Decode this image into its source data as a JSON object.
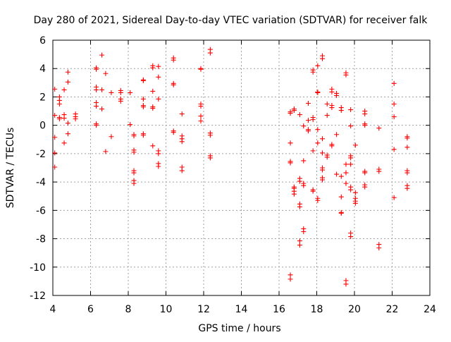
{
  "chart_data": {
    "type": "scatter",
    "title": "Day 280 of 2021, Sidereal Day-to-day VTEC variation (SDTVAR) for receiver falk",
    "xlabel": "GPS time / hours",
    "ylabel": "SDTVAR / TECUs",
    "xlim": [
      4,
      24
    ],
    "ylim": [
      -12,
      6
    ],
    "xticks": [
      4,
      6,
      8,
      10,
      12,
      14,
      16,
      18,
      20,
      22,
      24
    ],
    "yticks": [
      -12,
      -10,
      -8,
      -6,
      -4,
      -2,
      0,
      2,
      4,
      6
    ],
    "xtick_labels": [
      "4",
      "6",
      "8",
      "10",
      "12",
      "14",
      "16",
      "18",
      "20",
      "22",
      "24"
    ],
    "ytick_labels": [
      "-12",
      "-10",
      "-8",
      "-6",
      "-4",
      "-2",
      "0",
      "2",
      "4",
      "6"
    ],
    "grid": true,
    "marker": "plus",
    "color": "#ff0000",
    "series": [
      {
        "name": "SDTVAR",
        "points": [
          [
            4.1,
            2.55
          ],
          [
            4.1,
            0.7
          ],
          [
            4.1,
            -0.85
          ],
          [
            4.1,
            -1.95
          ],
          [
            4.1,
            -2.95
          ],
          [
            4.35,
            2.0
          ],
          [
            4.35,
            1.75
          ],
          [
            4.35,
            1.5
          ],
          [
            4.35,
            0.55
          ],
          [
            4.35,
            0.45
          ],
          [
            4.6,
            2.5
          ],
          [
            4.6,
            0.75
          ],
          [
            4.6,
            0.5
          ],
          [
            4.6,
            -1.25
          ],
          [
            4.8,
            3.75
          ],
          [
            4.8,
            3.05
          ],
          [
            4.8,
            0.15
          ],
          [
            4.8,
            -0.6
          ],
          [
            5.2,
            0.8
          ],
          [
            5.2,
            0.6
          ],
          [
            5.2,
            0.45
          ],
          [
            6.3,
            4.05
          ],
          [
            6.3,
            3.95
          ],
          [
            6.3,
            2.7
          ],
          [
            6.3,
            2.5
          ],
          [
            6.3,
            1.6
          ],
          [
            6.3,
            1.35
          ],
          [
            6.3,
            0.1
          ],
          [
            6.3,
            0.0
          ],
          [
            6.6,
            4.95
          ],
          [
            6.6,
            2.5
          ],
          [
            6.6,
            1.15
          ],
          [
            6.8,
            3.65
          ],
          [
            6.8,
            -1.85
          ],
          [
            7.1,
            2.3
          ],
          [
            7.1,
            -0.8
          ],
          [
            7.6,
            2.45
          ],
          [
            7.6,
            2.3
          ],
          [
            7.6,
            1.85
          ],
          [
            7.6,
            1.7
          ],
          [
            8.1,
            2.3
          ],
          [
            8.1,
            0.05
          ],
          [
            8.3,
            -0.65
          ],
          [
            8.3,
            -0.75
          ],
          [
            8.3,
            -1.75
          ],
          [
            8.3,
            -1.9
          ],
          [
            8.3,
            -3.2
          ],
          [
            8.3,
            -3.35
          ],
          [
            8.3,
            -3.9
          ],
          [
            8.3,
            -4.1
          ],
          [
            8.8,
            3.2
          ],
          [
            8.8,
            3.15
          ],
          [
            8.8,
            1.85
          ],
          [
            8.8,
            1.4
          ],
          [
            8.8,
            1.3
          ],
          [
            8.8,
            -0.6
          ],
          [
            8.8,
            -0.7
          ],
          [
            9.3,
            4.2
          ],
          [
            9.3,
            4.05
          ],
          [
            9.3,
            2.4
          ],
          [
            9.3,
            1.3
          ],
          [
            9.3,
            1.2
          ],
          [
            9.3,
            -1.45
          ],
          [
            9.6,
            4.15
          ],
          [
            9.6,
            3.4
          ],
          [
            9.6,
            1.85
          ],
          [
            9.6,
            -1.8
          ],
          [
            9.6,
            -2.0
          ],
          [
            9.6,
            -2.7
          ],
          [
            9.6,
            -2.9
          ],
          [
            10.4,
            4.75
          ],
          [
            10.4,
            4.6
          ],
          [
            10.4,
            2.85
          ],
          [
            10.4,
            2.95
          ],
          [
            10.4,
            -0.4
          ],
          [
            10.4,
            -0.5
          ],
          [
            10.85,
            0.8
          ],
          [
            10.85,
            -0.75
          ],
          [
            10.85,
            -0.95
          ],
          [
            10.85,
            -1.15
          ],
          [
            10.85,
            -2.95
          ],
          [
            10.85,
            -3.2
          ],
          [
            11.85,
            4.0
          ],
          [
            11.85,
            3.95
          ],
          [
            11.85,
            1.5
          ],
          [
            11.85,
            1.35
          ],
          [
            11.85,
            0.65
          ],
          [
            11.85,
            0.3
          ],
          [
            12.35,
            5.35
          ],
          [
            12.35,
            5.1
          ],
          [
            12.35,
            -0.55
          ],
          [
            12.35,
            -0.7
          ],
          [
            12.35,
            -2.15
          ],
          [
            12.35,
            -2.3
          ],
          [
            16.6,
            0.95
          ],
          [
            16.6,
            0.85
          ],
          [
            16.6,
            -1.25
          ],
          [
            16.6,
            -2.55
          ],
          [
            16.6,
            -2.65
          ],
          [
            16.6,
            -10.55
          ],
          [
            16.6,
            -10.85
          ],
          [
            16.8,
            1.15
          ],
          [
            16.8,
            1.05
          ],
          [
            16.8,
            -4.35
          ],
          [
            16.8,
            -4.45
          ],
          [
            16.8,
            -4.65
          ],
          [
            16.8,
            -4.85
          ],
          [
            17.1,
            0.75
          ],
          [
            17.1,
            -3.75
          ],
          [
            17.1,
            -3.95
          ],
          [
            17.1,
            -5.55
          ],
          [
            17.1,
            -5.75
          ],
          [
            17.1,
            -8.15
          ],
          [
            17.1,
            -8.45
          ],
          [
            17.3,
            -0.05
          ],
          [
            17.3,
            -2.5
          ],
          [
            17.3,
            -4.1
          ],
          [
            17.3,
            -4.25
          ],
          [
            17.3,
            -7.3
          ],
          [
            17.3,
            -7.5
          ],
          [
            17.55,
            1.55
          ],
          [
            17.55,
            0.35
          ],
          [
            17.55,
            -0.3
          ],
          [
            17.55,
            -0.4
          ],
          [
            17.8,
            3.9
          ],
          [
            17.8,
            3.75
          ],
          [
            17.8,
            0.55
          ],
          [
            17.8,
            0.4
          ],
          [
            17.8,
            -1.8
          ],
          [
            17.8,
            -4.55
          ],
          [
            17.8,
            -4.65
          ],
          [
            18.05,
            4.2
          ],
          [
            18.05,
            2.35
          ],
          [
            18.05,
            2.3
          ],
          [
            18.05,
            -0.3
          ],
          [
            18.05,
            -1.25
          ],
          [
            18.05,
            -5.15
          ],
          [
            18.05,
            -5.3
          ],
          [
            18.3,
            4.9
          ],
          [
            18.3,
            4.7
          ],
          [
            18.3,
            -0.95
          ],
          [
            18.3,
            -1.95
          ],
          [
            18.3,
            -3.0
          ],
          [
            18.3,
            -3.15
          ],
          [
            18.3,
            -3.7
          ],
          [
            18.3,
            -3.85
          ],
          [
            18.55,
            1.5
          ],
          [
            18.55,
            0.7
          ],
          [
            18.55,
            -2.1
          ],
          [
            18.55,
            -2.25
          ],
          [
            18.8,
            2.55
          ],
          [
            18.8,
            2.35
          ],
          [
            18.8,
            1.4
          ],
          [
            18.8,
            1.25
          ],
          [
            18.8,
            -1.35
          ],
          [
            18.8,
            -1.45
          ],
          [
            19.05,
            2.25
          ],
          [
            19.05,
            2.1
          ],
          [
            19.05,
            -0.65
          ],
          [
            19.05,
            -3.45
          ],
          [
            19.3,
            1.25
          ],
          [
            19.3,
            1.05
          ],
          [
            19.3,
            -3.6
          ],
          [
            19.3,
            -5.05
          ],
          [
            19.3,
            -6.15
          ],
          [
            19.3,
            -6.2
          ],
          [
            19.55,
            3.7
          ],
          [
            19.55,
            3.55
          ],
          [
            19.55,
            -2.75
          ],
          [
            19.55,
            -3.35
          ],
          [
            19.55,
            -4.1
          ],
          [
            19.55,
            -10.95
          ],
          [
            19.55,
            -11.2
          ],
          [
            19.8,
            1.1
          ],
          [
            19.8,
            -0.05
          ],
          [
            19.8,
            -2.15
          ],
          [
            19.8,
            -2.3
          ],
          [
            19.8,
            -2.75
          ],
          [
            19.8,
            -4.35
          ],
          [
            19.8,
            -4.55
          ],
          [
            19.8,
            -7.6
          ],
          [
            19.8,
            -7.85
          ],
          [
            20.05,
            -1.4
          ],
          [
            20.05,
            -4.75
          ],
          [
            20.05,
            -5.15
          ],
          [
            20.05,
            -5.35
          ],
          [
            20.05,
            -5.5
          ],
          [
            20.55,
            1.0
          ],
          [
            20.55,
            0.8
          ],
          [
            20.55,
            0.1
          ],
          [
            20.55,
            0.0
          ],
          [
            20.55,
            -3.25
          ],
          [
            20.55,
            -3.35
          ],
          [
            20.55,
            -4.2
          ],
          [
            20.55,
            -4.35
          ],
          [
            21.3,
            -0.2
          ],
          [
            21.3,
            -3.1
          ],
          [
            21.3,
            -3.25
          ],
          [
            21.3,
            -8.4
          ],
          [
            21.3,
            -8.65
          ],
          [
            22.1,
            2.95
          ],
          [
            22.1,
            1.5
          ],
          [
            22.1,
            0.6
          ],
          [
            22.1,
            -1.7
          ],
          [
            22.1,
            -5.1
          ],
          [
            22.8,
            -0.8
          ],
          [
            22.8,
            -0.9
          ],
          [
            22.8,
            -1.55
          ],
          [
            22.8,
            -3.2
          ],
          [
            22.8,
            -3.35
          ],
          [
            22.8,
            -4.25
          ],
          [
            22.8,
            -4.45
          ]
        ]
      }
    ]
  }
}
